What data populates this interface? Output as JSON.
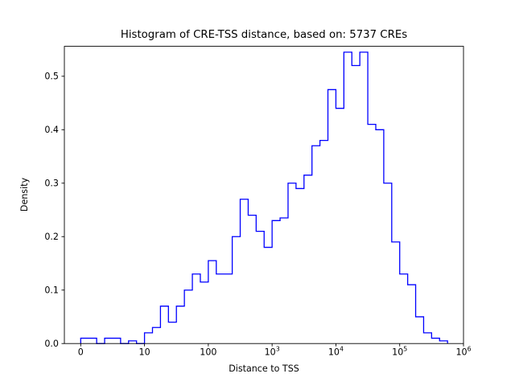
{
  "figure": {
    "title": "Histogram of CRE-TSS distance, based on: 5737 CREs",
    "xlabel": "Distance to TSS",
    "ylabel": "Density"
  },
  "chart_data": {
    "type": "bar",
    "subtype": "step-histogram",
    "title": "Histogram of CRE-TSS distance, based on: 5737 CREs",
    "xlabel": "Distance to TSS",
    "ylabel": "Density",
    "n_samples": 5737,
    "x_scale": "symlog",
    "grid": false,
    "legend": "none",
    "line_color": "#0000ff",
    "axis_color": "#000000",
    "ylim": [
      0,
      0.556
    ],
    "x_ticks": [
      {
        "label": "0",
        "exp": "",
        "u": 0
      },
      {
        "label": "10",
        "exp": "",
        "u": 1
      },
      {
        "label": "100",
        "exp": "",
        "u": 2
      },
      {
        "label": "10",
        "exp": "3",
        "u": 3
      },
      {
        "label": "10",
        "exp": "4",
        "u": 4
      },
      {
        "label": "10",
        "exp": "5",
        "u": 5
      },
      {
        "label": "10",
        "exp": "6",
        "u": 6
      }
    ],
    "y_ticks": [
      {
        "label": "0.0",
        "v": 0.0
      },
      {
        "label": "0.1",
        "v": 0.1
      },
      {
        "label": "0.2",
        "v": 0.2
      },
      {
        "label": "0.3",
        "v": 0.3
      },
      {
        "label": "0.4",
        "v": 0.4
      },
      {
        "label": "0.5",
        "v": 0.5
      }
    ],
    "bins": {
      "start_u": 0,
      "width_u": 0.125,
      "densities": [
        0.01,
        0.01,
        0.0,
        0.01,
        0.01,
        0.0,
        0.005,
        0.0,
        0.02,
        0.03,
        0.07,
        0.04,
        0.07,
        0.1,
        0.13,
        0.115,
        0.155,
        0.13,
        0.13,
        0.2,
        0.27,
        0.24,
        0.21,
        0.18,
        0.23,
        0.235,
        0.3,
        0.29,
        0.315,
        0.37,
        0.38,
        0.475,
        0.44,
        0.545,
        0.52,
        0.545,
        0.41,
        0.4,
        0.3,
        0.19,
        0.13,
        0.11,
        0.05,
        0.02,
        0.01,
        0.005
      ]
    }
  }
}
